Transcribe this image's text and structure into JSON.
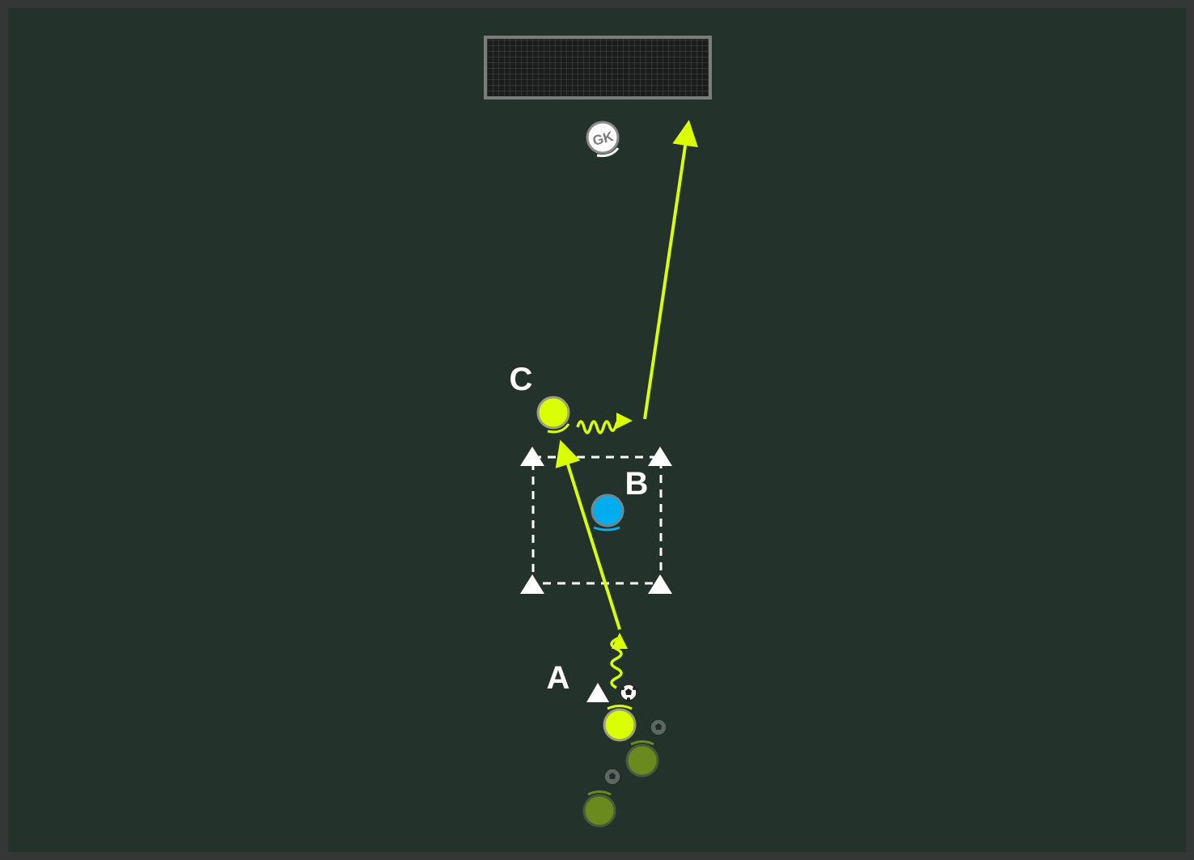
{
  "colors": {
    "background": "#23332b",
    "frame": "#333836",
    "attacker": "#d9ff00",
    "attacker_waiting": "#6b8a1e",
    "defender": "#00aeef",
    "goalkeeper": "#ffffff",
    "marker": "#ffffff",
    "arrow": "#d9ff00"
  },
  "labels": {
    "player_a": "A",
    "player_b": "B",
    "player_c": "C",
    "goalkeeper": "GK"
  },
  "icons": {
    "ball": "soccer-ball-icon",
    "cone": "cone-icon",
    "goal": "goal-net-icon"
  }
}
